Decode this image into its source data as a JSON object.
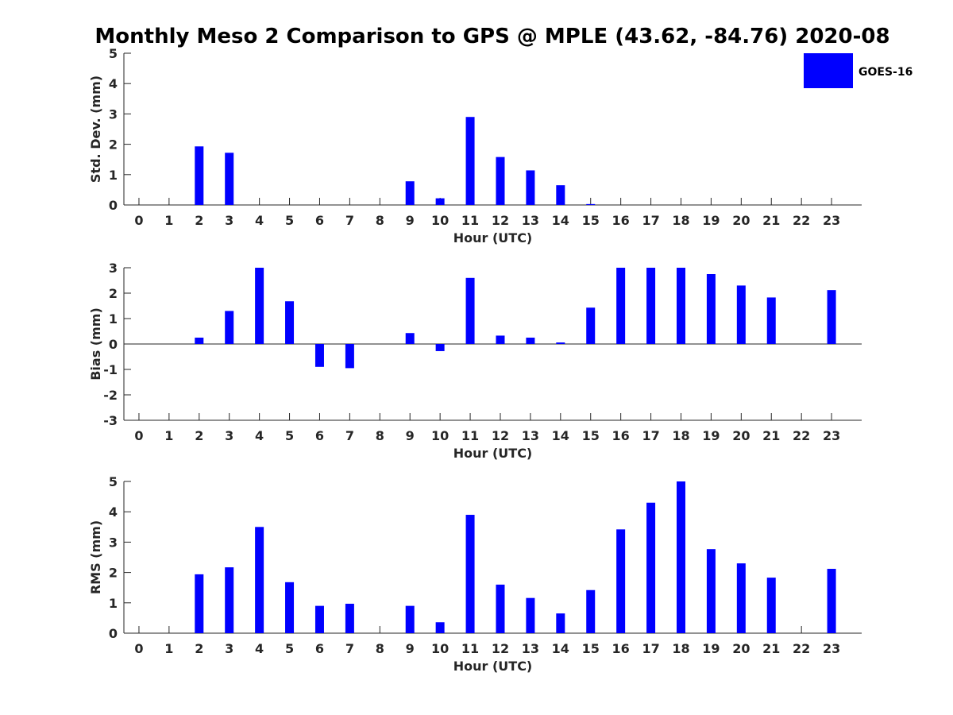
{
  "title": "Monthly Meso 2 Comparison to GPS @ MPLE (43.62, -84.76) 2020-08",
  "legend": {
    "label": "GOES-16",
    "color": "#0000ff",
    "placement": "top-right"
  },
  "chart_data": [
    {
      "type": "bar",
      "name": "stddev",
      "xlabel": "Hour (UTC)",
      "ylabel": "Std. Dev. (mm)",
      "ylim": [
        0,
        5
      ],
      "yticks": [
        0,
        1,
        2,
        3,
        4,
        5
      ],
      "categories": [
        "0",
        "1",
        "2",
        "3",
        "4",
        "5",
        "6",
        "7",
        "8",
        "9",
        "10",
        "11",
        "12",
        "13",
        "14",
        "15",
        "16",
        "17",
        "18",
        "19",
        "20",
        "21",
        "22",
        "23"
      ],
      "series": [
        {
          "name": "GOES-16",
          "color": "#0000ff",
          "values": [
            null,
            null,
            1.93,
            1.72,
            null,
            null,
            null,
            null,
            null,
            0.78,
            0.22,
            2.9,
            1.58,
            1.14,
            0.65,
            0.03,
            null,
            null,
            null,
            null,
            null,
            null,
            null,
            null
          ]
        }
      ]
    },
    {
      "type": "bar",
      "name": "bias",
      "xlabel": "Hour (UTC)",
      "ylabel": "Bias (mm)",
      "ylim": [
        -3,
        3
      ],
      "yticks": [
        -3,
        -2,
        -1,
        0,
        1,
        2,
        3
      ],
      "zero_line": true,
      "categories": [
        "0",
        "1",
        "2",
        "3",
        "4",
        "5",
        "6",
        "7",
        "8",
        "9",
        "10",
        "11",
        "12",
        "13",
        "14",
        "15",
        "16",
        "17",
        "18",
        "19",
        "20",
        "21",
        "22",
        "23"
      ],
      "series": [
        {
          "name": "GOES-16",
          "color": "#0000ff",
          "values": [
            null,
            null,
            0.25,
            1.3,
            3.0,
            1.68,
            -0.9,
            -0.95,
            null,
            0.43,
            -0.28,
            2.6,
            0.33,
            0.25,
            0.06,
            1.43,
            3.0,
            3.0,
            3.0,
            2.75,
            2.3,
            1.83,
            null,
            2.12
          ]
        }
      ]
    },
    {
      "type": "bar",
      "name": "rms",
      "xlabel": "Hour (UTC)",
      "ylabel": "RMS (mm)",
      "ylim": [
        0,
        5
      ],
      "yticks": [
        0,
        1,
        2,
        3,
        4,
        5
      ],
      "categories": [
        "0",
        "1",
        "2",
        "3",
        "4",
        "5",
        "6",
        "7",
        "8",
        "9",
        "10",
        "11",
        "12",
        "13",
        "14",
        "15",
        "16",
        "17",
        "18",
        "19",
        "20",
        "21",
        "22",
        "23"
      ],
      "series": [
        {
          "name": "GOES-16",
          "color": "#0000ff",
          "values": [
            null,
            null,
            1.94,
            2.17,
            3.5,
            1.68,
            0.9,
            0.97,
            null,
            0.9,
            0.36,
            3.9,
            1.6,
            1.16,
            0.65,
            1.42,
            3.42,
            4.3,
            5.0,
            2.77,
            2.3,
            1.83,
            null,
            2.12
          ]
        }
      ]
    }
  ]
}
